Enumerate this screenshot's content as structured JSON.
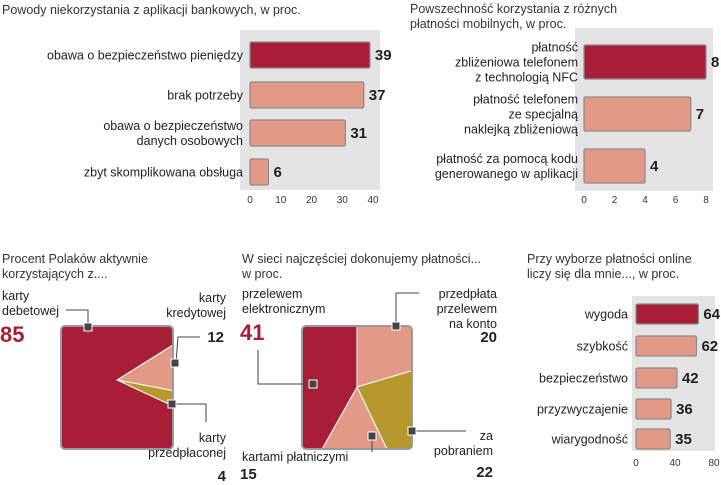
{
  "colors": {
    "dark_red": "#a81e37",
    "salmon": "#e29a86",
    "olive": "#b7982c",
    "panel_bg": "#e4e4e4",
    "big_number_red": "#a81e37"
  },
  "chart_data": [
    {
      "type": "bar",
      "orientation": "horizontal",
      "title": "Powody niekorzystania z aplikacji bankowych, w proc.",
      "categories": [
        "obawa o bezpieczeństwo pieniędzy",
        "brak potrzeby",
        "obawa o bezpieczeństwo danych osobowych",
        "zbyt skomplikowana obsługa"
      ],
      "category_lines": [
        [
          "obawa o bezpieczeństwo pieniędzy"
        ],
        [
          "brak potrzeby"
        ],
        [
          "obawa o bezpieczeństwo",
          "danych osobowych"
        ],
        [
          "zbyt skomplikowana obsługa"
        ]
      ],
      "values": [
        39,
        37,
        31,
        6
      ],
      "highlight_index": 0,
      "xlim": [
        0,
        40
      ],
      "ticks": [
        "0",
        "10",
        "20",
        "30",
        "40"
      ]
    },
    {
      "type": "bar",
      "orientation": "horizontal",
      "title": "Powszechność korzystania z różnych płatności mobilnych, w proc.",
      "title_lines": [
        "Powszechność korzystania z różnych",
        "płatności mobilnych, w proc."
      ],
      "categories": [
        "płatność zbliżeniowa telefonem z technologią NFC",
        "płatność telefonem ze specjalną naklejką zbliżeniową",
        "płatność za pomocą kodu generowanego w aplikacji"
      ],
      "category_lines": [
        [
          "płatność",
          "zbliżeniowa telefonem",
          "z technologią NFC"
        ],
        [
          "płatność telefonem",
          "ze specjalną",
          "naklejką zbliżeniową"
        ],
        [
          "płatność za pomocą kodu",
          "generowanego w aplikacji"
        ]
      ],
      "values": [
        8,
        7,
        4
      ],
      "highlight_index": 0,
      "xlim": [
        0,
        8
      ],
      "ticks": [
        "0",
        "2",
        "4",
        "6",
        "8"
      ]
    },
    {
      "type": "pie",
      "title": "Procent Polaków aktywnie korzystających z....",
      "title_lines": [
        "Procent Polaków aktywnie",
        "korzystających z...."
      ],
      "slices": [
        {
          "label": "karty debetowej",
          "label_lines": [
            "karty",
            "debetowej"
          ],
          "value": 85,
          "color": "#a81e37",
          "big": true
        },
        {
          "label": "karty kredytowej",
          "label_lines": [
            "karty",
            "kredytowej"
          ],
          "value": 12,
          "color": "#e29a86"
        },
        {
          "label": "karty przedpłaconej",
          "label_lines": [
            "karty",
            "przedpłaconej"
          ],
          "value": 4,
          "color": "#b7982c"
        }
      ]
    },
    {
      "type": "pie",
      "title": "W sieci najczęściej dokonujemy płatności... w proc.",
      "title_lines": [
        "W sieci najczęściej dokonujemy płatności...",
        "w proc."
      ],
      "slices": [
        {
          "label": "przelewem elektronicznym",
          "label_lines": [
            "przelewem",
            "elektronicznym"
          ],
          "value": 41,
          "color": "#a81e37",
          "big": true
        },
        {
          "label": "przedpłata przelewem na konto",
          "label_lines": [
            "przedpłata",
            "przelewem",
            "na konto"
          ],
          "value": 20,
          "color": "#e29a86"
        },
        {
          "label": "za pobraniem",
          "label_lines": [
            "za",
            "pobraniem"
          ],
          "value": 22,
          "color": "#b7982c"
        },
        {
          "label": "kartami płatniczymi",
          "label_lines": [
            "kartami płatniczymi"
          ],
          "value": 15,
          "color": "#e29a86"
        }
      ]
    },
    {
      "type": "bar",
      "orientation": "horizontal",
      "title": "Przy wyborze płatności online liczy się dla mnie..., w proc.",
      "title_lines": [
        "Przy wyborze płatności online",
        "liczy się dla mnie..., w proc."
      ],
      "categories": [
        "wygoda",
        "szybkość",
        "bezpieczeństwo",
        "przyzwyczajenie",
        "wiarygodność"
      ],
      "values": [
        64,
        62,
        42,
        36,
        35
      ],
      "highlight_index": 0,
      "xlim": [
        0,
        80
      ],
      "ticks": [
        "0",
        "40",
        "80"
      ]
    }
  ]
}
